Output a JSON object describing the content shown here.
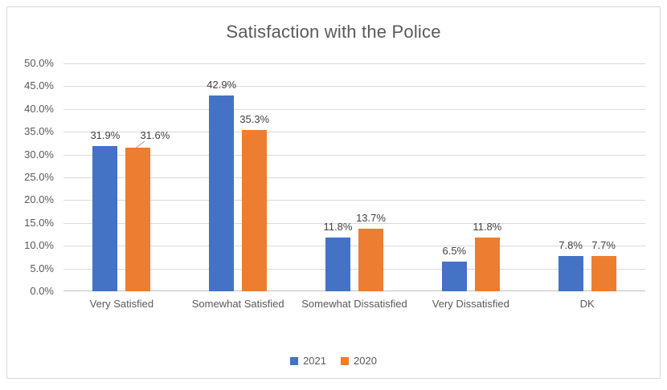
{
  "chart_data": {
    "type": "bar",
    "title": "Satisfaction with the Police",
    "categories": [
      "Very Satisfied",
      "Somewhat Satisfied",
      "Somewhat Dissatisfied",
      "Very Dissatisfied",
      "DK"
    ],
    "series": [
      {
        "name": "2021",
        "color": "#4472C4",
        "values": [
          31.9,
          42.9,
          11.8,
          6.5,
          7.8
        ]
      },
      {
        "name": "2020",
        "color": "#ED7D31",
        "values": [
          31.6,
          35.3,
          13.7,
          11.8,
          7.7
        ]
      }
    ],
    "data_labels": [
      [
        "31.9%",
        "42.9%",
        "11.8%",
        "6.5%",
        "7.8%"
      ],
      [
        "31.6%",
        "35.3%",
        "13.7%",
        "11.8%",
        "7.7%"
      ]
    ],
    "value_suffix": "%",
    "ylim": [
      0,
      50
    ],
    "ytick_step": 5,
    "yticks": [
      "0.0%",
      "5.0%",
      "10.0%",
      "15.0%",
      "20.0%",
      "25.0%",
      "30.0%",
      "35.0%",
      "40.0%",
      "45.0%",
      "50.0%"
    ],
    "grid": true,
    "legend_position": "bottom",
    "raised_label": {
      "series": 1,
      "category": 0
    },
    "colors": {
      "gridline": "#d9d9d9",
      "axis_line": "#bfbfbf",
      "tick_text": "#595959",
      "category_text": "#595959",
      "data_label_text": "#404040",
      "title_text": "#595959",
      "legend_text": "#595959",
      "leader_line": "#a6a6a6",
      "frame_border": "#d6d6d6"
    }
  }
}
